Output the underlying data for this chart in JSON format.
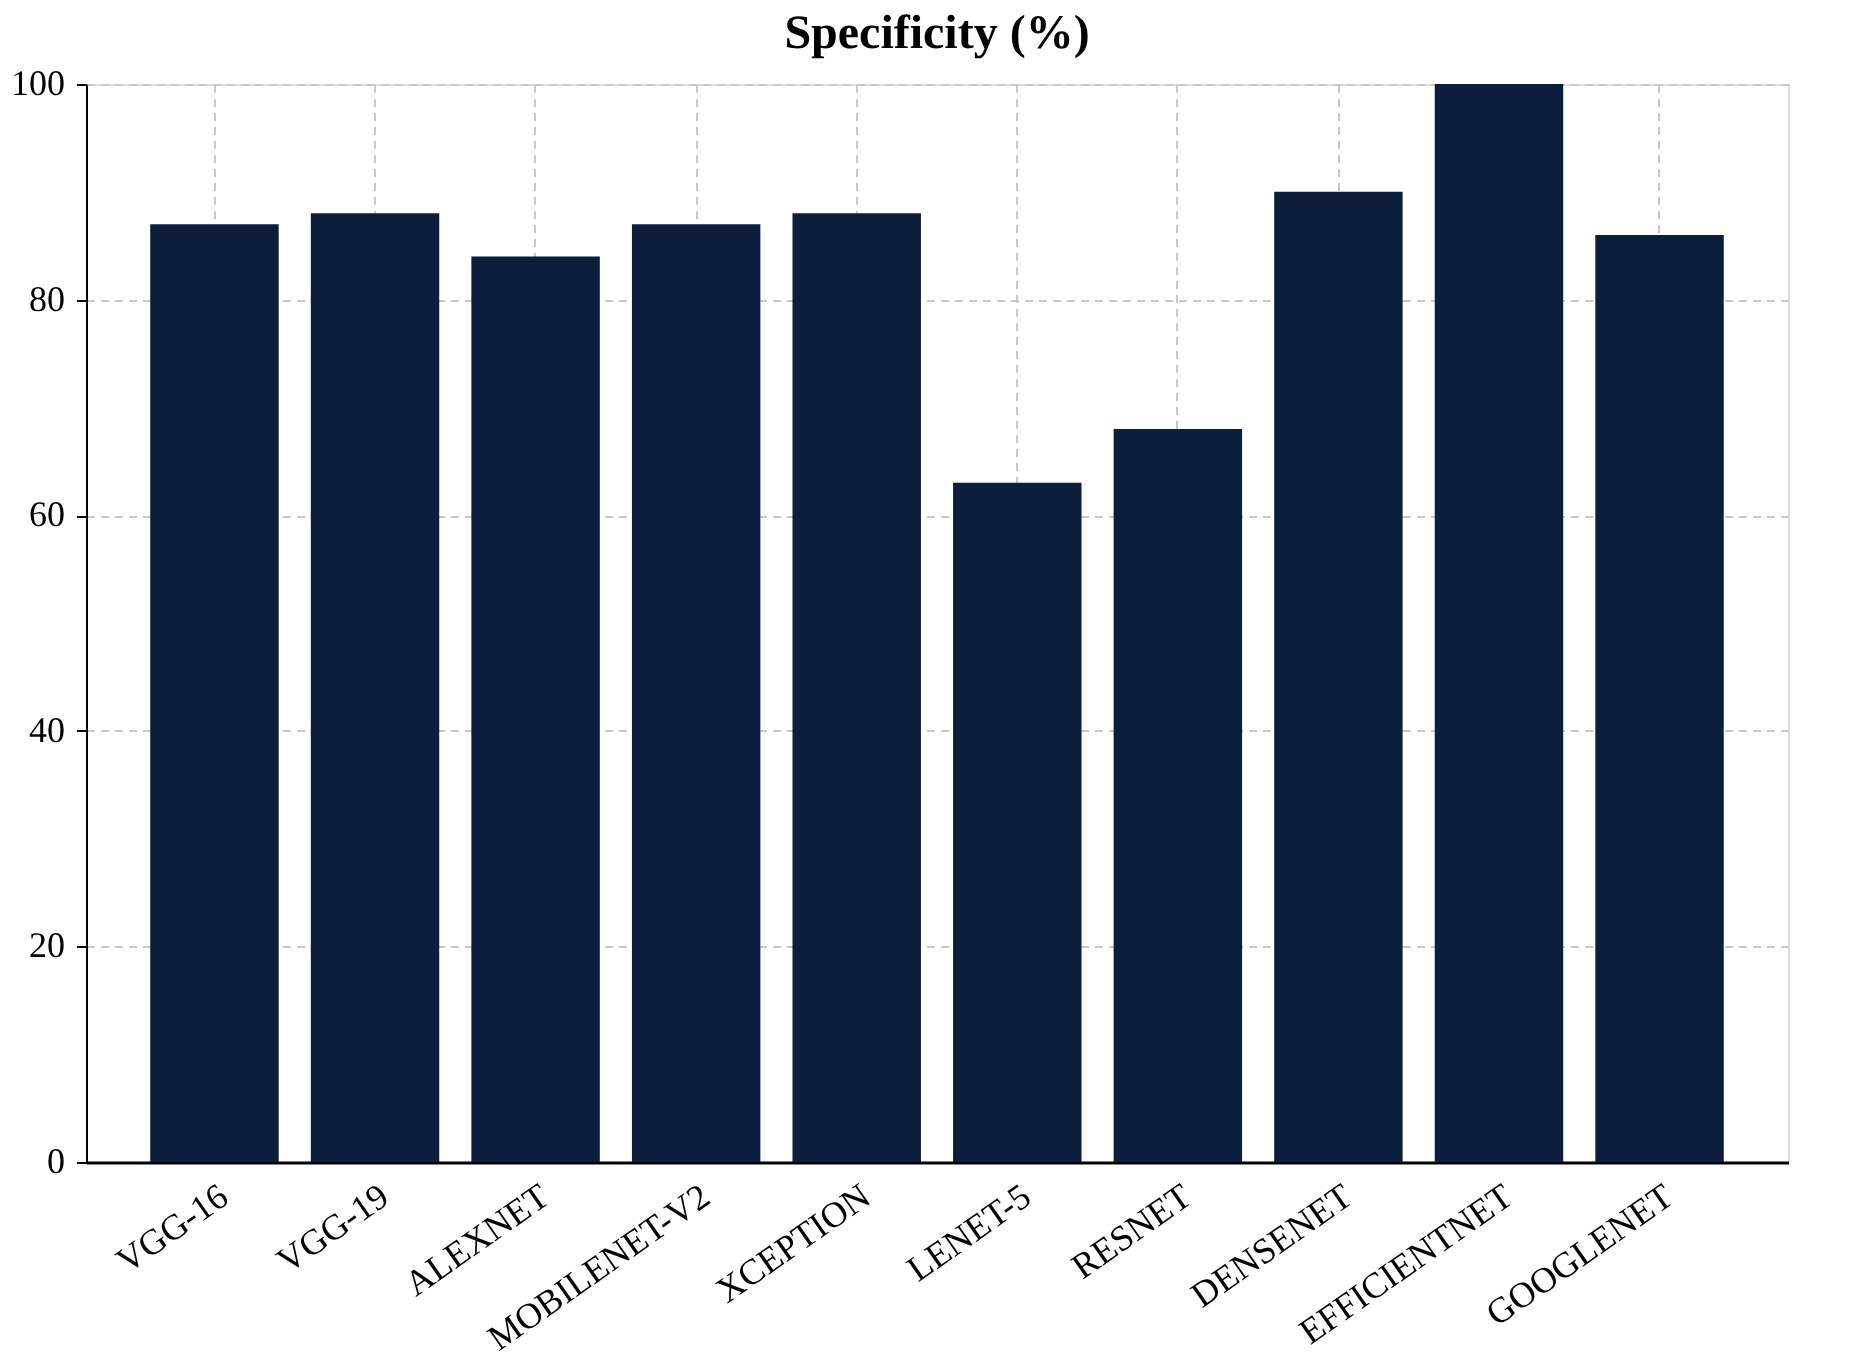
{
  "chart_data": {
    "type": "bar",
    "title": "Specificity (%)",
    "categories": [
      "VGG-16",
      "VGG-19",
      "ALEXNET",
      "MOBILENET-V2",
      "XCEPTION",
      "LENET-5",
      "RESNET",
      "DENSENET",
      "EFFICIENTNET",
      "GOOGLENET"
    ],
    "values": [
      87,
      88,
      84,
      87,
      88,
      63,
      68,
      90,
      100,
      86
    ],
    "color": "#0b1f3d",
    "ylim": [
      0,
      100
    ],
    "yticks": [
      0,
      20,
      40,
      60,
      80,
      100
    ],
    "grid": true
  }
}
